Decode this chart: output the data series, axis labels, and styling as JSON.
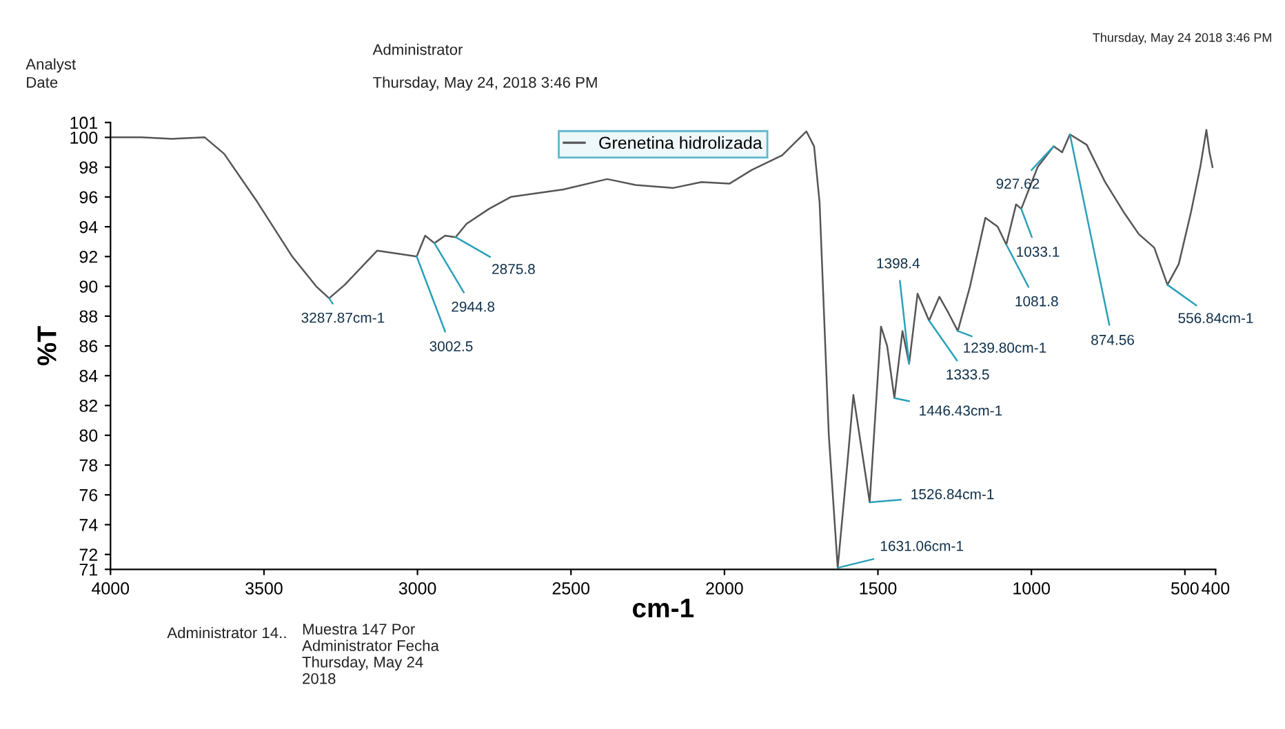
{
  "chart_data": {
    "type": "line",
    "xlabel": "cm-1",
    "ylabel": "%T",
    "xlim": [
      4000,
      400
    ],
    "xticks": [
      4000,
      3500,
      3000,
      2500,
      2000,
      1500,
      1000,
      500,
      400
    ],
    "ylim": [
      71,
      101
    ],
    "yticks": [
      71,
      72,
      74,
      76,
      78,
      80,
      82,
      84,
      86,
      88,
      90,
      92,
      94,
      96,
      98,
      100,
      101
    ],
    "grid": false,
    "legend": "top",
    "marker": "none",
    "line_style": "solid",
    "series": [
      {
        "name": "Grenetina hidrolizada",
        "color": "#555555",
        "x": [
          4000,
          3900,
          3800,
          3693,
          3630,
          3523,
          3408,
          3330,
          3287.87,
          3237,
          3131,
          3002.5,
          2975,
          2944.8,
          2910,
          2875.8,
          2840,
          2767,
          2696,
          2525,
          2382,
          2289,
          2168,
          2075,
          1983,
          1912,
          1812,
          1733,
          1708,
          1690,
          1660,
          1631.06,
          1600,
          1580,
          1526.84,
          1490,
          1470,
          1446.43,
          1420,
          1398.4,
          1371,
          1333.5,
          1300,
          1270,
          1239.8,
          1200,
          1150,
          1110,
          1081.8,
          1050,
          1033.1,
          980,
          927.62,
          900,
          874.56,
          820,
          760,
          700,
          650,
          600,
          556.84,
          520,
          480,
          450,
          430,
          420,
          410
        ],
        "values": [
          100,
          100,
          99.9,
          100,
          98.9,
          95.7,
          92,
          90,
          89.2,
          90.1,
          92.4,
          92,
          93.4,
          92.9,
          93.4,
          93.3,
          94.2,
          95.2,
          96,
          96.5,
          97.2,
          96.8,
          96.6,
          97,
          96.9,
          97.8,
          98.8,
          100.4,
          99.4,
          95.6,
          80,
          71.1,
          78,
          82.7,
          75.5,
          87.3,
          86,
          82.5,
          87,
          84.8,
          89.5,
          87.7,
          89.3,
          88.2,
          87,
          90,
          94.6,
          94,
          92.8,
          95.5,
          95.2,
          98,
          99.4,
          99,
          100.2,
          99.5,
          97,
          95,
          93.5,
          92.6,
          90.1,
          91.5,
          95,
          98,
          100.5,
          99,
          98
        ]
      }
    ],
    "annotations": [
      {
        "text": "3287.87cm-1",
        "x": 3287.87,
        "y": 89.2
      },
      {
        "text": "3002.5",
        "x": 3002.5,
        "y": 92
      },
      {
        "text": "2944.8",
        "x": 2944.8,
        "y": 92.9
      },
      {
        "text": "2875.8",
        "x": 2875.8,
        "y": 93.3
      },
      {
        "text": "1631.06cm-1",
        "x": 1631.06,
        "y": 71.1
      },
      {
        "text": "1526.84cm-1",
        "x": 1526.84,
        "y": 75.5
      },
      {
        "text": "1446.43cm-1",
        "x": 1446.43,
        "y": 82.5
      },
      {
        "text": "1398.4",
        "x": 1398.4,
        "y": 84.8
      },
      {
        "text": "1333.5",
        "x": 1333.5,
        "y": 87.7
      },
      {
        "text": "1239.80cm-1",
        "x": 1239.8,
        "y": 87
      },
      {
        "text": "1081.8",
        "x": 1081.8,
        "y": 92.8
      },
      {
        "text": "1033.1",
        "x": 1033.1,
        "y": 95.2
      },
      {
        "text": "927.62",
        "x": 927.62,
        "y": 99.4
      },
      {
        "text": "874.56",
        "x": 874.56,
        "y": 100.2
      },
      {
        "text": "556.84cm-1",
        "x": 556.84,
        "y": 90.1
      },
      "Analyst",
      "Administrator",
      "Date",
      "Thursday, May 24, 2018 3:46 PM",
      "Thursday, May 24 2018 3:46 PM",
      "Administrator 14..",
      "Muestra 147 Por\nAdministrator Fecha\nThursday, May 24\n2018"
    ]
  }
}
